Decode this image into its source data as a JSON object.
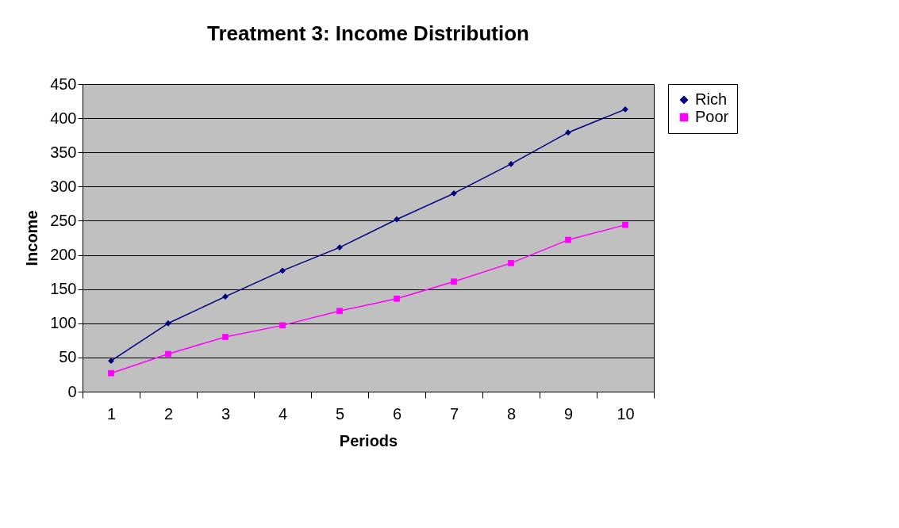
{
  "chart_data": {
    "type": "line",
    "title": "Treatment 3: Income Distribution",
    "xlabel": "Periods",
    "ylabel": "Income",
    "categories": [
      "1",
      "2",
      "3",
      "4",
      "5",
      "6",
      "7",
      "8",
      "9",
      "10"
    ],
    "series": [
      {
        "name": "Rich",
        "color": "#000080",
        "marker": "diamond",
        "values": [
          45,
          100,
          139,
          177,
          211,
          252,
          290,
          333,
          379,
          413
        ]
      },
      {
        "name": "Poor",
        "color": "#ff00ff",
        "marker": "square",
        "values": [
          27,
          55,
          80,
          97,
          118,
          136,
          161,
          188,
          222,
          244
        ]
      }
    ],
    "ylim": [
      0,
      450
    ],
    "yticks": [
      0,
      50,
      100,
      150,
      200,
      250,
      300,
      350,
      400,
      450
    ],
    "grid": "y",
    "legend": "right",
    "line_style": "solid"
  }
}
